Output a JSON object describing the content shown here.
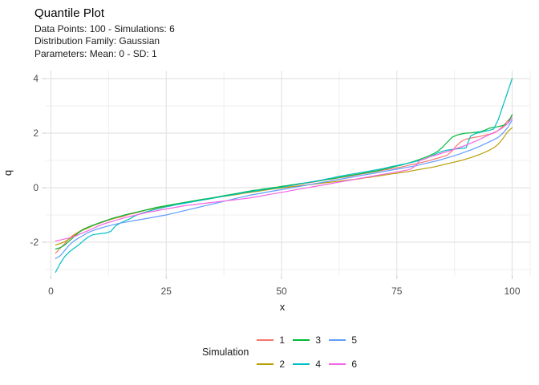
{
  "title": "Quantile Plot",
  "subtitle_lines": [
    "Data Points: 100 - Simulations: 6",
    "Distribution Family: Gaussian",
    "Parameters: Mean: 0 - SD: 1"
  ],
  "axes": {
    "x_label": "x",
    "y_label": "q"
  },
  "legend": {
    "title": "Simulation",
    "entries": [
      {
        "label": "1",
        "color": "#F8766D"
      },
      {
        "label": "2",
        "color": "#B79F00"
      },
      {
        "label": "3",
        "color": "#00BA38"
      },
      {
        "label": "4",
        "color": "#00BFC4"
      },
      {
        "label": "5",
        "color": "#619CFF"
      },
      {
        "label": "6",
        "color": "#F564E3"
      }
    ]
  },
  "chart_data": {
    "type": "line",
    "title": "Quantile Plot",
    "xlabel": "x",
    "ylabel": "q",
    "xlim": [
      0,
      100
    ],
    "ylim": [
      -3.2,
      4.3
    ],
    "grid": true,
    "legend_position": "bottom",
    "grid_major_color": "#E4E4E4",
    "grid_minor_color": "#EFEFEF",
    "tick_mark_color": "#C9C9C9",
    "tick_label_color": "#4D4D4D",
    "x_tick_values": [
      0,
      25,
      50,
      75,
      100
    ],
    "x_tick_labels": [
      "0",
      "25",
      "50",
      "75",
      "100"
    ],
    "y_tick_values": [
      -2,
      0,
      2,
      4
    ],
    "y_tick_labels": [
      "-2",
      "0",
      "2",
      "4"
    ],
    "x_minor_ticks": [
      12.5,
      37.5,
      62.5,
      87.5
    ],
    "y_minor_ticks": [
      -3,
      -1,
      1,
      3
    ],
    "x_description": "sorted sample index 1-100",
    "series": [
      {
        "name": "1",
        "color": "#F8766D",
        "values": [
          -2.4,
          -2.22,
          -2.05,
          -1.85,
          -1.72,
          -1.63,
          -1.52,
          -1.45,
          -1.4,
          -1.34,
          -1.28,
          -1.22,
          -1.16,
          -1.12,
          -1.08,
          -1.03,
          -0.98,
          -0.94,
          -0.9,
          -0.85,
          -0.8,
          -0.77,
          -0.73,
          -0.7,
          -0.67,
          -0.64,
          -0.62,
          -0.58,
          -0.55,
          -0.52,
          -0.49,
          -0.46,
          -0.43,
          -0.41,
          -0.38,
          -0.35,
          -0.32,
          -0.3,
          -0.27,
          -0.25,
          -0.2,
          -0.17,
          -0.14,
          -0.12,
          -0.09,
          -0.07,
          -0.04,
          -0.02,
          0.0,
          0.02,
          0.04,
          0.07,
          0.1,
          0.13,
          0.16,
          0.18,
          0.21,
          0.24,
          0.27,
          0.3,
          0.32,
          0.35,
          0.38,
          0.4,
          0.43,
          0.46,
          0.49,
          0.52,
          0.55,
          0.58,
          0.61,
          0.64,
          0.67,
          0.7,
          0.73,
          0.76,
          0.8,
          0.84,
          0.87,
          0.91,
          0.95,
          0.99,
          1.04,
          1.09,
          1.14,
          1.2,
          1.35,
          1.55,
          1.7,
          1.78,
          1.82,
          1.85,
          1.88,
          1.92,
          1.96,
          2.0,
          2.1,
          2.25,
          2.45,
          2.62
        ]
      },
      {
        "name": "2",
        "color": "#B79F00",
        "values": [
          -2.1,
          -2.05,
          -1.98,
          -1.88,
          -1.75,
          -1.62,
          -1.55,
          -1.48,
          -1.4,
          -1.32,
          -1.26,
          -1.21,
          -1.16,
          -1.11,
          -1.06,
          -1.01,
          -0.96,
          -0.92,
          -0.88,
          -0.84,
          -0.81,
          -0.78,
          -0.74,
          -0.71,
          -0.68,
          -0.65,
          -0.61,
          -0.58,
          -0.56,
          -0.53,
          -0.5,
          -0.47,
          -0.44,
          -0.42,
          -0.39,
          -0.36,
          -0.33,
          -0.31,
          -0.28,
          -0.26,
          -0.23,
          -0.2,
          -0.18,
          -0.15,
          -0.13,
          -0.1,
          -0.08,
          -0.05,
          -0.03,
          -0.01,
          0.01,
          0.03,
          0.05,
          0.07,
          0.09,
          0.11,
          0.13,
          0.15,
          0.17,
          0.19,
          0.21,
          0.23,
          0.25,
          0.27,
          0.29,
          0.31,
          0.33,
          0.36,
          0.38,
          0.41,
          0.43,
          0.46,
          0.48,
          0.51,
          0.53,
          0.56,
          0.58,
          0.61,
          0.64,
          0.67,
          0.7,
          0.73,
          0.76,
          0.8,
          0.84,
          0.88,
          0.92,
          0.96,
          1.0,
          1.05,
          1.1,
          1.16,
          1.22,
          1.29,
          1.37,
          1.46,
          1.6,
          1.8,
          2.05,
          2.2
        ]
      },
      {
        "name": "3",
        "color": "#00BA38",
        "values": [
          -2.25,
          -2.2,
          -2.1,
          -1.95,
          -1.8,
          -1.65,
          -1.53,
          -1.45,
          -1.38,
          -1.32,
          -1.26,
          -1.2,
          -1.14,
          -1.09,
          -1.05,
          -1.0,
          -0.96,
          -0.92,
          -0.88,
          -0.84,
          -0.8,
          -0.76,
          -0.72,
          -0.69,
          -0.66,
          -0.63,
          -0.6,
          -0.57,
          -0.54,
          -0.51,
          -0.48,
          -0.45,
          -0.42,
          -0.4,
          -0.37,
          -0.34,
          -0.31,
          -0.28,
          -0.25,
          -0.22,
          -0.19,
          -0.16,
          -0.13,
          -0.1,
          -0.08,
          -0.05,
          -0.03,
          0.0,
          0.02,
          0.05,
          0.07,
          0.1,
          0.12,
          0.15,
          0.17,
          0.2,
          0.22,
          0.25,
          0.28,
          0.31,
          0.33,
          0.36,
          0.39,
          0.42,
          0.45,
          0.48,
          0.51,
          0.54,
          0.57,
          0.6,
          0.63,
          0.67,
          0.71,
          0.75,
          0.79,
          0.83,
          0.88,
          0.93,
          0.98,
          1.04,
          1.1,
          1.17,
          1.25,
          1.35,
          1.5,
          1.68,
          1.85,
          1.93,
          1.97,
          2.0,
          2.01,
          2.03,
          2.05,
          2.1,
          2.18,
          2.21,
          2.24,
          2.28,
          2.35,
          2.68
        ]
      },
      {
        "name": "4",
        "color": "#00BFC4",
        "values": [
          -3.1,
          -2.78,
          -2.52,
          -2.35,
          -2.22,
          -2.1,
          -1.95,
          -1.82,
          -1.73,
          -1.7,
          -1.68,
          -1.66,
          -1.6,
          -1.4,
          -1.3,
          -1.22,
          -1.15,
          -1.05,
          -0.98,
          -0.92,
          -0.87,
          -0.82,
          -0.78,
          -0.74,
          -0.7,
          -0.67,
          -0.63,
          -0.6,
          -0.57,
          -0.54,
          -0.51,
          -0.48,
          -0.45,
          -0.42,
          -0.39,
          -0.36,
          -0.33,
          -0.3,
          -0.27,
          -0.24,
          -0.21,
          -0.18,
          -0.15,
          -0.13,
          -0.1,
          -0.08,
          -0.05,
          -0.03,
          0.0,
          0.02,
          0.05,
          0.08,
          0.11,
          0.14,
          0.17,
          0.2,
          0.23,
          0.26,
          0.29,
          0.33,
          0.36,
          0.4,
          0.43,
          0.46,
          0.49,
          0.52,
          0.55,
          0.58,
          0.61,
          0.64,
          0.67,
          0.7,
          0.74,
          0.78,
          0.81,
          0.85,
          0.88,
          0.92,
          0.96,
          1.0,
          1.05,
          1.12,
          1.2,
          1.28,
          1.34,
          1.38,
          1.4,
          1.42,
          1.44,
          1.46,
          1.9,
          1.98,
          2.03,
          2.07,
          2.1,
          2.15,
          2.5,
          3.0,
          3.5,
          4.0
        ]
      },
      {
        "name": "5",
        "color": "#619CFF",
        "values": [
          -2.6,
          -2.5,
          -2.3,
          -2.1,
          -1.95,
          -1.85,
          -1.75,
          -1.65,
          -1.58,
          -1.52,
          -1.47,
          -1.42,
          -1.38,
          -1.34,
          -1.3,
          -1.27,
          -1.24,
          -1.21,
          -1.18,
          -1.15,
          -1.12,
          -1.09,
          -1.06,
          -1.03,
          -1.0,
          -0.96,
          -0.92,
          -0.88,
          -0.84,
          -0.8,
          -0.76,
          -0.72,
          -0.68,
          -0.64,
          -0.6,
          -0.56,
          -0.52,
          -0.48,
          -0.44,
          -0.4,
          -0.36,
          -0.32,
          -0.28,
          -0.25,
          -0.22,
          -0.19,
          -0.16,
          -0.13,
          -0.1,
          -0.07,
          -0.04,
          -0.01,
          0.02,
          0.05,
          0.08,
          0.11,
          0.14,
          0.17,
          0.2,
          0.23,
          0.26,
          0.29,
          0.32,
          0.35,
          0.38,
          0.41,
          0.44,
          0.47,
          0.5,
          0.53,
          0.56,
          0.59,
          0.62,
          0.65,
          0.68,
          0.71,
          0.74,
          0.77,
          0.8,
          0.84,
          0.88,
          0.92,
          0.96,
          1.0,
          1.05,
          1.1,
          1.15,
          1.2,
          1.26,
          1.32,
          1.38,
          1.45,
          1.52,
          1.6,
          1.68,
          1.76,
          1.85,
          2.0,
          2.2,
          2.48
        ]
      },
      {
        "name": "6",
        "color": "#F564E3",
        "values": [
          -1.95,
          -1.92,
          -1.88,
          -1.84,
          -1.8,
          -1.72,
          -1.65,
          -1.58,
          -1.5,
          -1.43,
          -1.36,
          -1.3,
          -1.25,
          -1.2,
          -1.15,
          -1.1,
          -1.06,
          -1.02,
          -0.98,
          -0.94,
          -0.9,
          -0.87,
          -0.84,
          -0.81,
          -0.78,
          -0.75,
          -0.72,
          -0.69,
          -0.66,
          -0.64,
          -0.62,
          -0.6,
          -0.58,
          -0.56,
          -0.54,
          -0.52,
          -0.5,
          -0.48,
          -0.46,
          -0.44,
          -0.42,
          -0.4,
          -0.38,
          -0.35,
          -0.32,
          -0.29,
          -0.26,
          -0.23,
          -0.2,
          -0.17,
          -0.14,
          -0.11,
          -0.08,
          -0.05,
          -0.02,
          0.01,
          0.04,
          0.07,
          0.1,
          0.13,
          0.16,
          0.19,
          0.22,
          0.25,
          0.28,
          0.31,
          0.34,
          0.37,
          0.4,
          0.43,
          0.46,
          0.49,
          0.52,
          0.55,
          0.58,
          0.61,
          0.64,
          0.68,
          0.8,
          1.0,
          1.05,
          1.12,
          1.17,
          1.22,
          1.28,
          1.33,
          1.38,
          1.44,
          1.5,
          1.56,
          1.63,
          1.7,
          1.78,
          1.86,
          1.94,
          2.02,
          2.1,
          2.2,
          2.35,
          2.55
        ]
      }
    ]
  }
}
